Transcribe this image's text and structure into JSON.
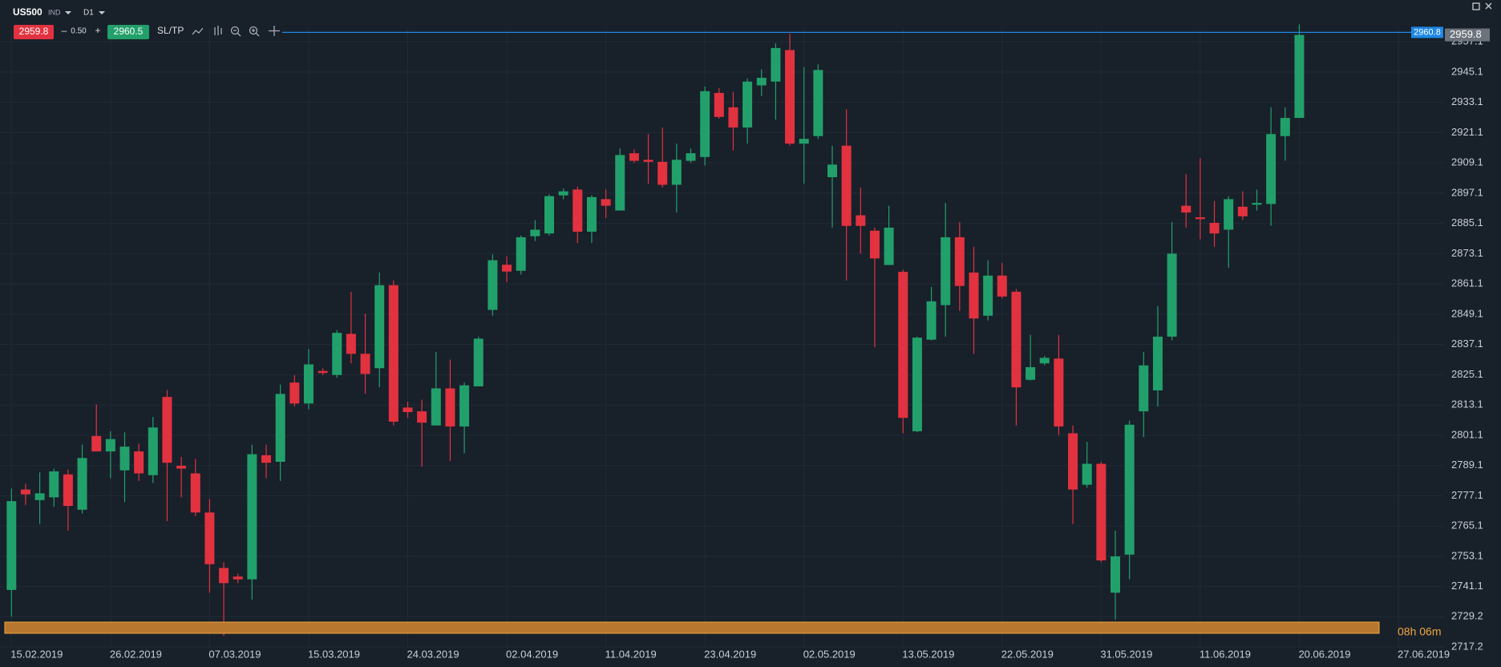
{
  "toolbar": {
    "symbol": "US500",
    "tag": "IND",
    "timeframe": "D1",
    "sell": "2959.8",
    "minus": "–",
    "spread": "0.50",
    "plus": "+",
    "buy": "2960.5",
    "sltp": "SL/TP",
    "timer": "08h 06m"
  },
  "chart_data": {
    "type": "candlestick",
    "categories": [
      "15.02.2019",
      null,
      null,
      null,
      null,
      null,
      null,
      "26.02.2019",
      null,
      null,
      null,
      null,
      null,
      null,
      "07.03.2019",
      null,
      null,
      null,
      null,
      null,
      null,
      "15.03.2019",
      null,
      null,
      null,
      null,
      null,
      null,
      "24.03.2019",
      null,
      null,
      null,
      null,
      null,
      null,
      "02.04.2019",
      null,
      null,
      null,
      null,
      null,
      null,
      "11.04.2019",
      null,
      null,
      null,
      null,
      null,
      null,
      "23.04.2019",
      null,
      null,
      null,
      null,
      null,
      null,
      "02.05.2019",
      null,
      null,
      null,
      null,
      null,
      null,
      "13.05.2019",
      null,
      null,
      null,
      null,
      null,
      null,
      "22.05.2019",
      null,
      null,
      null,
      null,
      null,
      null,
      "31.05.2019",
      null,
      null,
      null,
      null,
      null,
      null,
      "11.06.2019",
      null,
      null,
      null,
      null,
      null,
      null,
      "20.06.2019",
      null,
      null,
      null,
      null,
      null,
      null,
      "27.06.2019"
    ],
    "open": [
      2739.8,
      2779.6,
      2775.4,
      2776.5,
      2785.6,
      2771.6,
      2800.8,
      2794.7,
      2787.2,
      2794.7,
      2785.3,
      2816.3,
      2789.0,
      2786.0,
      2770.5,
      2748.5,
      2745.1,
      2744.0,
      2793.2,
      2790.6,
      2822.0,
      2813.7,
      2826.6,
      2825.0,
      2841.3,
      2833.4,
      2827.7,
      2860.6,
      2812.1,
      2810.6,
      2805.0,
      2819.7,
      2804.6,
      2820.5,
      2850.8,
      2868.7,
      2866.3,
      2880.0,
      2881.1,
      2896.2,
      2898.5,
      2881.8,
      2894.7,
      2890.2,
      2912.9,
      2910.3,
      2909.5,
      2900.4,
      2909.9,
      2911.4,
      2936.8,
      2931.1,
      2923.1,
      2939.8,
      2941.3,
      2953.8,
      2916.7,
      2919.7,
      2903.4,
      2915.9,
      2888.3,
      2882.2,
      2868.6,
      2865.9,
      2802.7,
      2839.0,
      2852.7,
      2879.6,
      2865.6,
      2848.5,
      2864.4,
      2858.0,
      2823.1,
      2829.6,
      2831.5,
      2801.9,
      2781.5,
      2789.8,
      2738.7,
      2753.8,
      2810.6,
      2818.9,
      2840.2,
      2892.1,
      2887.5,
      2885.3,
      2882.6,
      2891.7,
      2892.5,
      2892.8,
      2919.7,
      2926.9,
      null,
      null,
      null,
      null,
      null,
      null,
      null
    ],
    "high": [
      2780.0,
      2781.9,
      2786.4,
      2787.9,
      2787.5,
      2797.4,
      2813.3,
      2802.7,
      2802.3,
      2797.8,
      2808.4,
      2819.0,
      2792.5,
      2791.7,
      2775.8,
      2750.8,
      2746.2,
      2797.4,
      2797.4,
      2821.2,
      2825.0,
      2835.3,
      2827.7,
      2842.8,
      2858.0,
      2849.3,
      2865.6,
      2862.5,
      2814.4,
      2815.2,
      2834.1,
      2831.1,
      2822.0,
      2840.2,
      2872.8,
      2872.0,
      2880.3,
      2886.4,
      2896.6,
      2898.9,
      2899.7,
      2896.2,
      2898.5,
      2914.8,
      2914.4,
      2920.5,
      2923.1,
      2916.7,
      2914.8,
      2939.4,
      2938.7,
      2937.2,
      2942.5,
      2946.2,
      2956.5,
      2960.3,
      2947.0,
      2948.1,
      2915.9,
      2930.3,
      2899.3,
      2883.4,
      2892.1,
      2866.7,
      2840.2,
      2859.9,
      2893.2,
      2885.6,
      2875.8,
      2870.5,
      2869.4,
      2859.1,
      2840.9,
      2832.6,
      2840.9,
      2805.0,
      2798.5,
      2790.6,
      2763.3,
      2806.9,
      2834.1,
      2852.3,
      2885.6,
      2904.6,
      2911.0,
      2894.0,
      2895.9,
      2897.8,
      2898.5,
      2931.1,
      2931.1,
      2964.0,
      null,
      null,
      null,
      null,
      null,
      null,
      null
    ],
    "low": [
      2729.2,
      2773.5,
      2765.9,
      2772.8,
      2763.3,
      2770.1,
      2794.7,
      2784.1,
      2774.6,
      2783.0,
      2782.2,
      2767.1,
      2776.5,
      2769.0,
      2738.7,
      2721.6,
      2742.5,
      2736.0,
      2784.1,
      2783.0,
      2812.5,
      2811.4,
      2825.0,
      2823.9,
      2829.6,
      2817.5,
      2820.1,
      2805.0,
      2808.0,
      2788.7,
      2805.0,
      2790.9,
      2794.0,
      2820.5,
      2848.5,
      2861.8,
      2864.8,
      2878.1,
      2880.3,
      2894.7,
      2877.3,
      2877.3,
      2887.2,
      2890.2,
      2909.1,
      2900.8,
      2899.3,
      2889.4,
      2909.1,
      2908.0,
      2926.6,
      2914.0,
      2916.7,
      2935.6,
      2926.2,
      2915.9,
      2900.8,
      2918.6,
      2883.4,
      2862.5,
      2873.1,
      2836.0,
      2868.6,
      2801.9,
      2802.3,
      2838.7,
      2840.2,
      2850.4,
      2833.4,
      2846.6,
      2855.3,
      2805.0,
      2822.8,
      2828.8,
      2801.2,
      2765.9,
      2780.3,
      2750.8,
      2728.1,
      2744.0,
      2800.4,
      2812.5,
      2838.7,
      2883.4,
      2878.8,
      2875.8,
      2867.5,
      2886.4,
      2890.2,
      2884.1,
      2909.9,
      2926.9,
      null,
      null,
      null,
      null,
      null,
      null,
      null
    ],
    "close": [
      2775.0,
      2777.7,
      2778.1,
      2786.8,
      2773.1,
      2792.1,
      2794.7,
      2799.6,
      2796.6,
      2786.0,
      2804.2,
      2790.2,
      2787.9,
      2770.5,
      2750.0,
      2742.5,
      2744.0,
      2793.6,
      2790.2,
      2817.5,
      2813.7,
      2829.2,
      2825.8,
      2841.7,
      2833.4,
      2825.4,
      2860.6,
      2806.5,
      2810.3,
      2806.1,
      2819.7,
      2804.6,
      2820.9,
      2839.4,
      2870.5,
      2866.0,
      2879.6,
      2882.6,
      2895.9,
      2897.8,
      2881.8,
      2895.5,
      2892.1,
      2912.2,
      2909.9,
      2909.5,
      2900.4,
      2910.3,
      2912.9,
      2937.5,
      2927.3,
      2923.1,
      2941.3,
      2942.8,
      2954.6,
      2916.7,
      2918.6,
      2945.9,
      2908.4,
      2884.1,
      2884.1,
      2871.2,
      2883.4,
      2808.0,
      2839.8,
      2854.2,
      2879.6,
      2860.3,
      2847.4,
      2864.4,
      2856.1,
      2820.1,
      2828.1,
      2831.8,
      2804.6,
      2779.6,
      2789.8,
      2751.5,
      2753.1,
      2805.3,
      2828.8,
      2840.2,
      2873.1,
      2889.4,
      2886.8,
      2881.1,
      2894.7,
      2887.9,
      2893.2,
      2920.5,
      2926.9,
      2959.8,
      null,
      null,
      null,
      null,
      null,
      null,
      null
    ],
    "up_color": "#22a06b",
    "down_color": "#e2323f",
    "ask_line": 2960.8,
    "ask_color": "#1e88e5",
    "last_price": 2959.8,
    "ylim": [
      2717.2,
      2962.2
    ],
    "yticks": [
      2717.2,
      2729.2,
      2741.1,
      2753.1,
      2765.1,
      2777.1,
      2789.1,
      2801.1,
      2813.1,
      2825.1,
      2837.1,
      2849.1,
      2861.1,
      2873.1,
      2885.1,
      2897.1,
      2909.1,
      2921.1,
      2933.1,
      2945.1,
      2957.1
    ],
    "grid": true
  }
}
